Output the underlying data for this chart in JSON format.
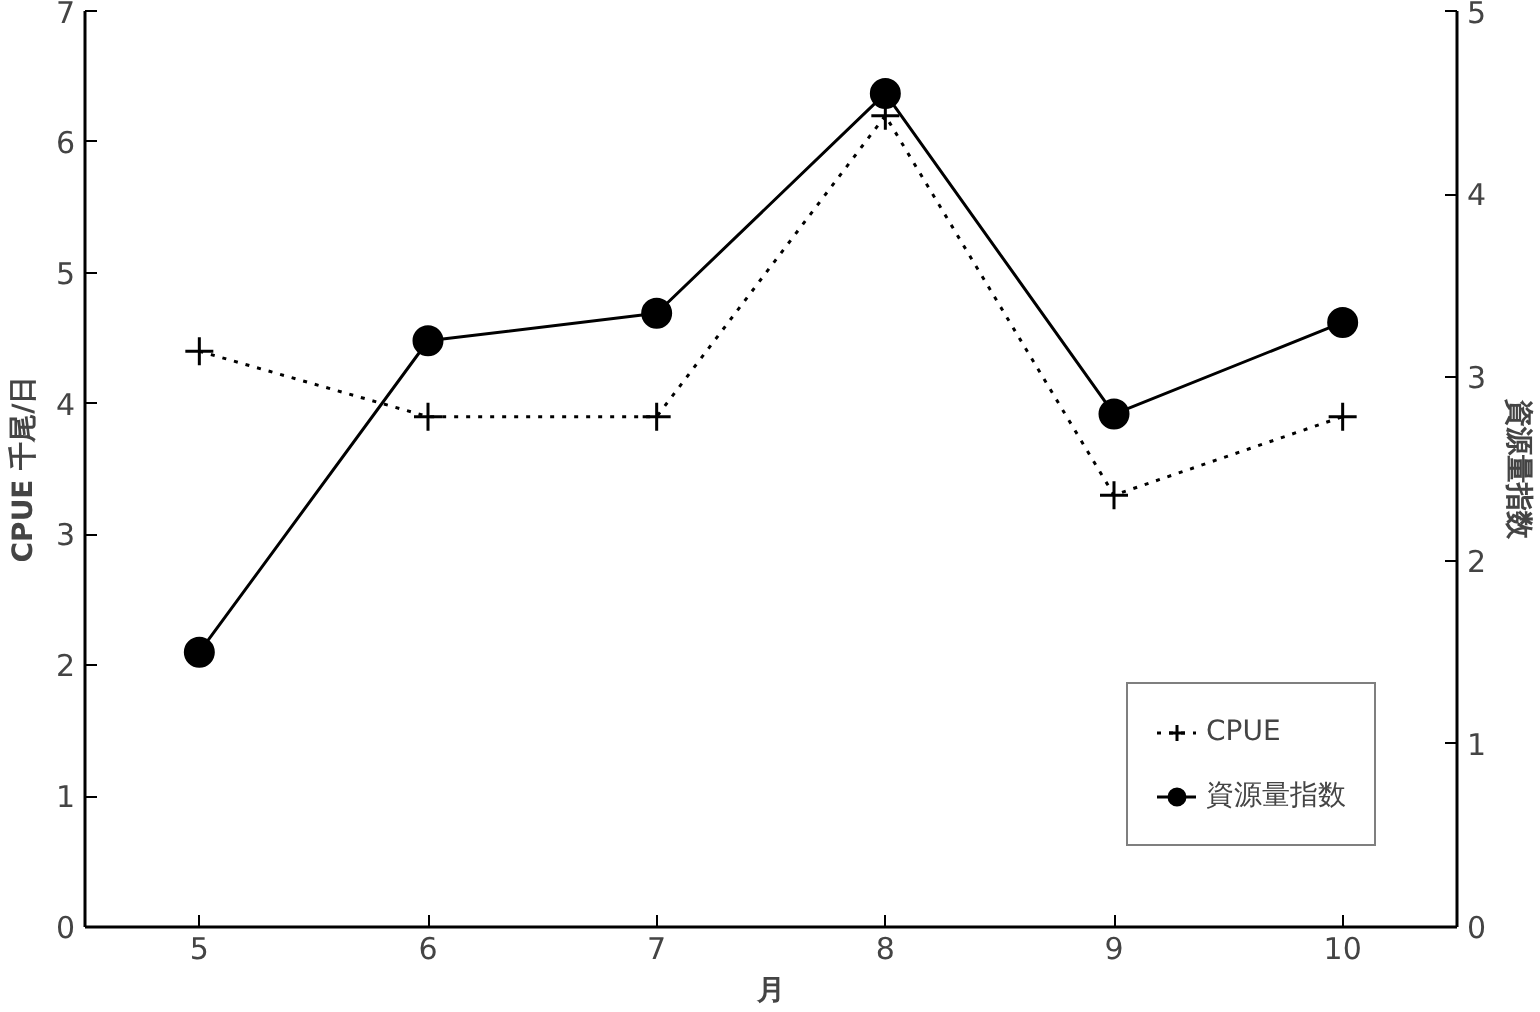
{
  "chart_data": {
    "type": "line",
    "xlabel": "月",
    "ylabel": "CPUE 千尾/日",
    "y2label": "資源量指数",
    "x": [
      5,
      6,
      7,
      8,
      9,
      10
    ],
    "xlim": [
      4.5,
      10.5
    ],
    "xticks": [
      5,
      6,
      7,
      8,
      9,
      10
    ],
    "ylim": [
      0,
      7
    ],
    "yticks": [
      0,
      1,
      2,
      3,
      4,
      5,
      6,
      7
    ],
    "y2lim": [
      0,
      5
    ],
    "y2ticks": [
      0,
      1,
      2,
      3,
      4,
      5
    ],
    "grid": false,
    "legend": "bottom right",
    "series": [
      {
        "name": "CPUE",
        "color": "#000000",
        "marker": "cross",
        "line_style": "dotted",
        "values": [
          4.4,
          3.9,
          3.9,
          6.2,
          3.3,
          3.9
        ]
      },
      {
        "name": "資源量指数",
        "color": "#000000",
        "marker": "circle",
        "line_style": "solid",
        "axis": "y2",
        "values": [
          1.5,
          3.2,
          3.35,
          4.55,
          2.8,
          3.3
        ]
      }
    ]
  }
}
